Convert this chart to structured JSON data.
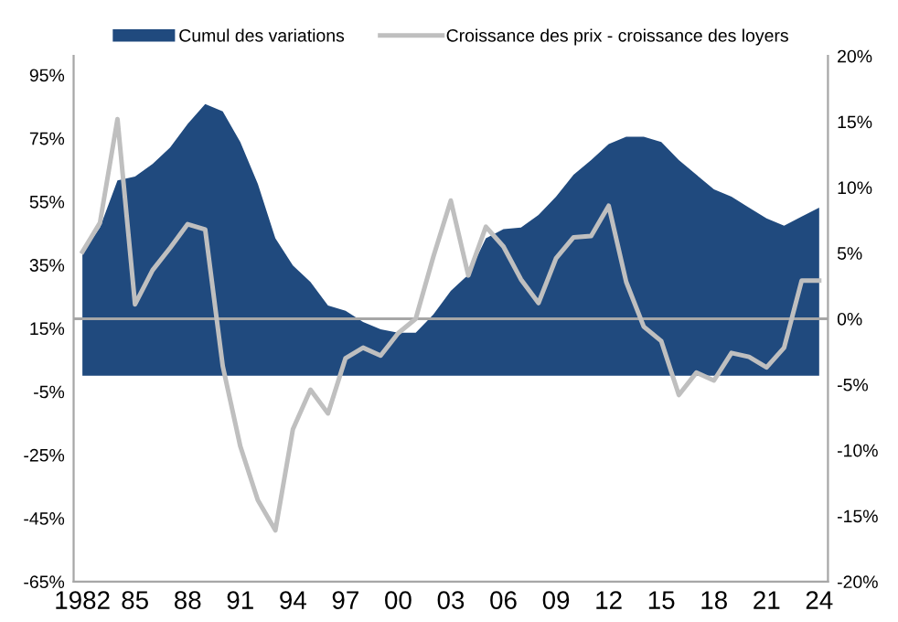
{
  "chart_data": {
    "type": "area",
    "categories": [
      "1982",
      null,
      null,
      "85",
      null,
      null,
      "88",
      null,
      null,
      "91",
      null,
      null,
      "94",
      null,
      null,
      "97",
      null,
      null,
      "00",
      null,
      null,
      "03",
      null,
      null,
      "06",
      null,
      null,
      "09",
      null,
      null,
      "12",
      null,
      null,
      "15",
      null,
      null,
      "18",
      null,
      null,
      "21",
      null,
      null,
      "24"
    ],
    "series": [
      {
        "name": "Cumul des variations",
        "color": "#204a7e",
        "values": [
          38.8,
          46.8,
          61.7,
          62.9,
          66.9,
          72.1,
          79.5,
          85.8,
          83.5,
          73.8,
          60.6,
          43.4,
          34.8,
          29.6,
          22.2,
          20.5,
          17,
          14.7,
          13.6,
          13.6,
          19.3,
          26.8,
          31.9,
          43.4,
          46.3,
          46.8,
          50.8,
          56.6,
          63.5,
          68.1,
          73.2,
          75.5,
          75.5,
          73.8,
          68.1,
          63.5,
          58.9,
          56.6,
          53.1,
          49.7,
          47.4,
          50.3,
          53.1
        ]
      },
      {
        "name": "Croissance des prix - croissance des loyers",
        "type": "line",
        "axis": "y2",
        "color": "#bfbfbf",
        "values": [
          5.1,
          7.3,
          15.2,
          1.1,
          3.7,
          5.4,
          7.2,
          6.8,
          -3.6,
          -9.7,
          -13.8,
          -16.1,
          -8.4,
          -5.4,
          -7.2,
          -3.0,
          -2.2,
          -2.8,
          -1.1,
          0,
          4.7,
          9.0,
          3.3,
          7.0,
          5.5,
          3.0,
          1.2,
          4.6,
          6.2,
          6.3,
          8.6,
          2.8,
          -0.6,
          -1.7,
          -5.8,
          -4.1,
          -4.7,
          -2.6,
          -2.9,
          -3.7,
          -2.2,
          2.9,
          2.9
        ]
      }
    ],
    "ylim": [
      -65,
      101
    ],
    "yticks": [
      {
        "value": -65,
        "label": "-65%"
      },
      {
        "value": -45,
        "label": "-45%"
      },
      {
        "value": -25,
        "label": "-25%"
      },
      {
        "value": -5,
        "label": "-5%"
      },
      {
        "value": 15,
        "label": "15%"
      },
      {
        "value": 35,
        "label": "35%"
      },
      {
        "value": 55,
        "label": "55%"
      },
      {
        "value": 75,
        "label": "75%"
      },
      {
        "value": 95,
        "label": "95%"
      }
    ],
    "y2lim": [
      -20,
      20
    ],
    "y2ticks": [
      {
        "value": -20,
        "label": "-20%"
      },
      {
        "value": -15,
        "label": "-15%"
      },
      {
        "value": -10,
        "label": "-10%"
      },
      {
        "value": -5,
        "label": "-5%"
      },
      {
        "value": 0,
        "label": "0%"
      },
      {
        "value": 5,
        "label": "5%"
      },
      {
        "value": 10,
        "label": "10%"
      },
      {
        "value": 15,
        "label": "15%"
      },
      {
        "value": 20,
        "label": "20%"
      }
    ],
    "ref_lines": [
      {
        "axis": "y2",
        "value": 0,
        "color": "#a6a6a6"
      }
    ],
    "legend": "top",
    "grid": false,
    "marker": "none",
    "line_style": "solid"
  }
}
